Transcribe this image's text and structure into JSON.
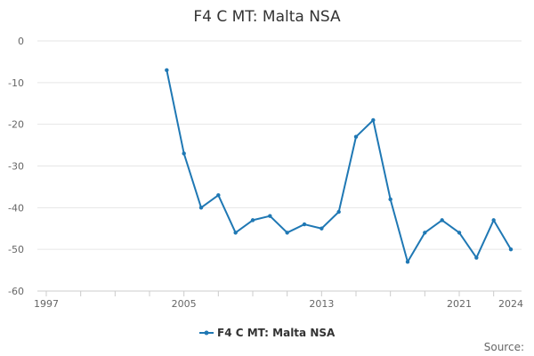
{
  "chart_data": {
    "type": "line",
    "title": "F4 C MT: Malta NSA",
    "xlabel": "",
    "ylabel": "",
    "x_ticks": [
      "1997",
      "2005",
      "2013",
      "2021",
      "2024"
    ],
    "y_ticks": [
      0,
      -10,
      -20,
      -30,
      -40,
      -50,
      -60
    ],
    "xlim": [
      1997,
      2024
    ],
    "ylim": [
      -60,
      0
    ],
    "grid": "horizontal",
    "legend": "bottom-center",
    "series": [
      {
        "name": "F4 C MT: Malta NSA",
        "color": "#1f78b4",
        "x": [
          2004,
          2005,
          2006,
          2007,
          2008,
          2009,
          2010,
          2011,
          2012,
          2013,
          2014,
          2015,
          2016,
          2017,
          2018,
          2019,
          2020,
          2021,
          2022,
          2023,
          2024
        ],
        "values": [
          -7,
          -27,
          -40,
          -37,
          -46,
          -43,
          -42,
          -46,
          -44,
          -45,
          -41,
          -23,
          -19,
          -38,
          -53,
          -46,
          -43,
          -46,
          -52,
          -43,
          -50
        ]
      }
    ]
  },
  "footer": {
    "source_label": "Source:"
  }
}
